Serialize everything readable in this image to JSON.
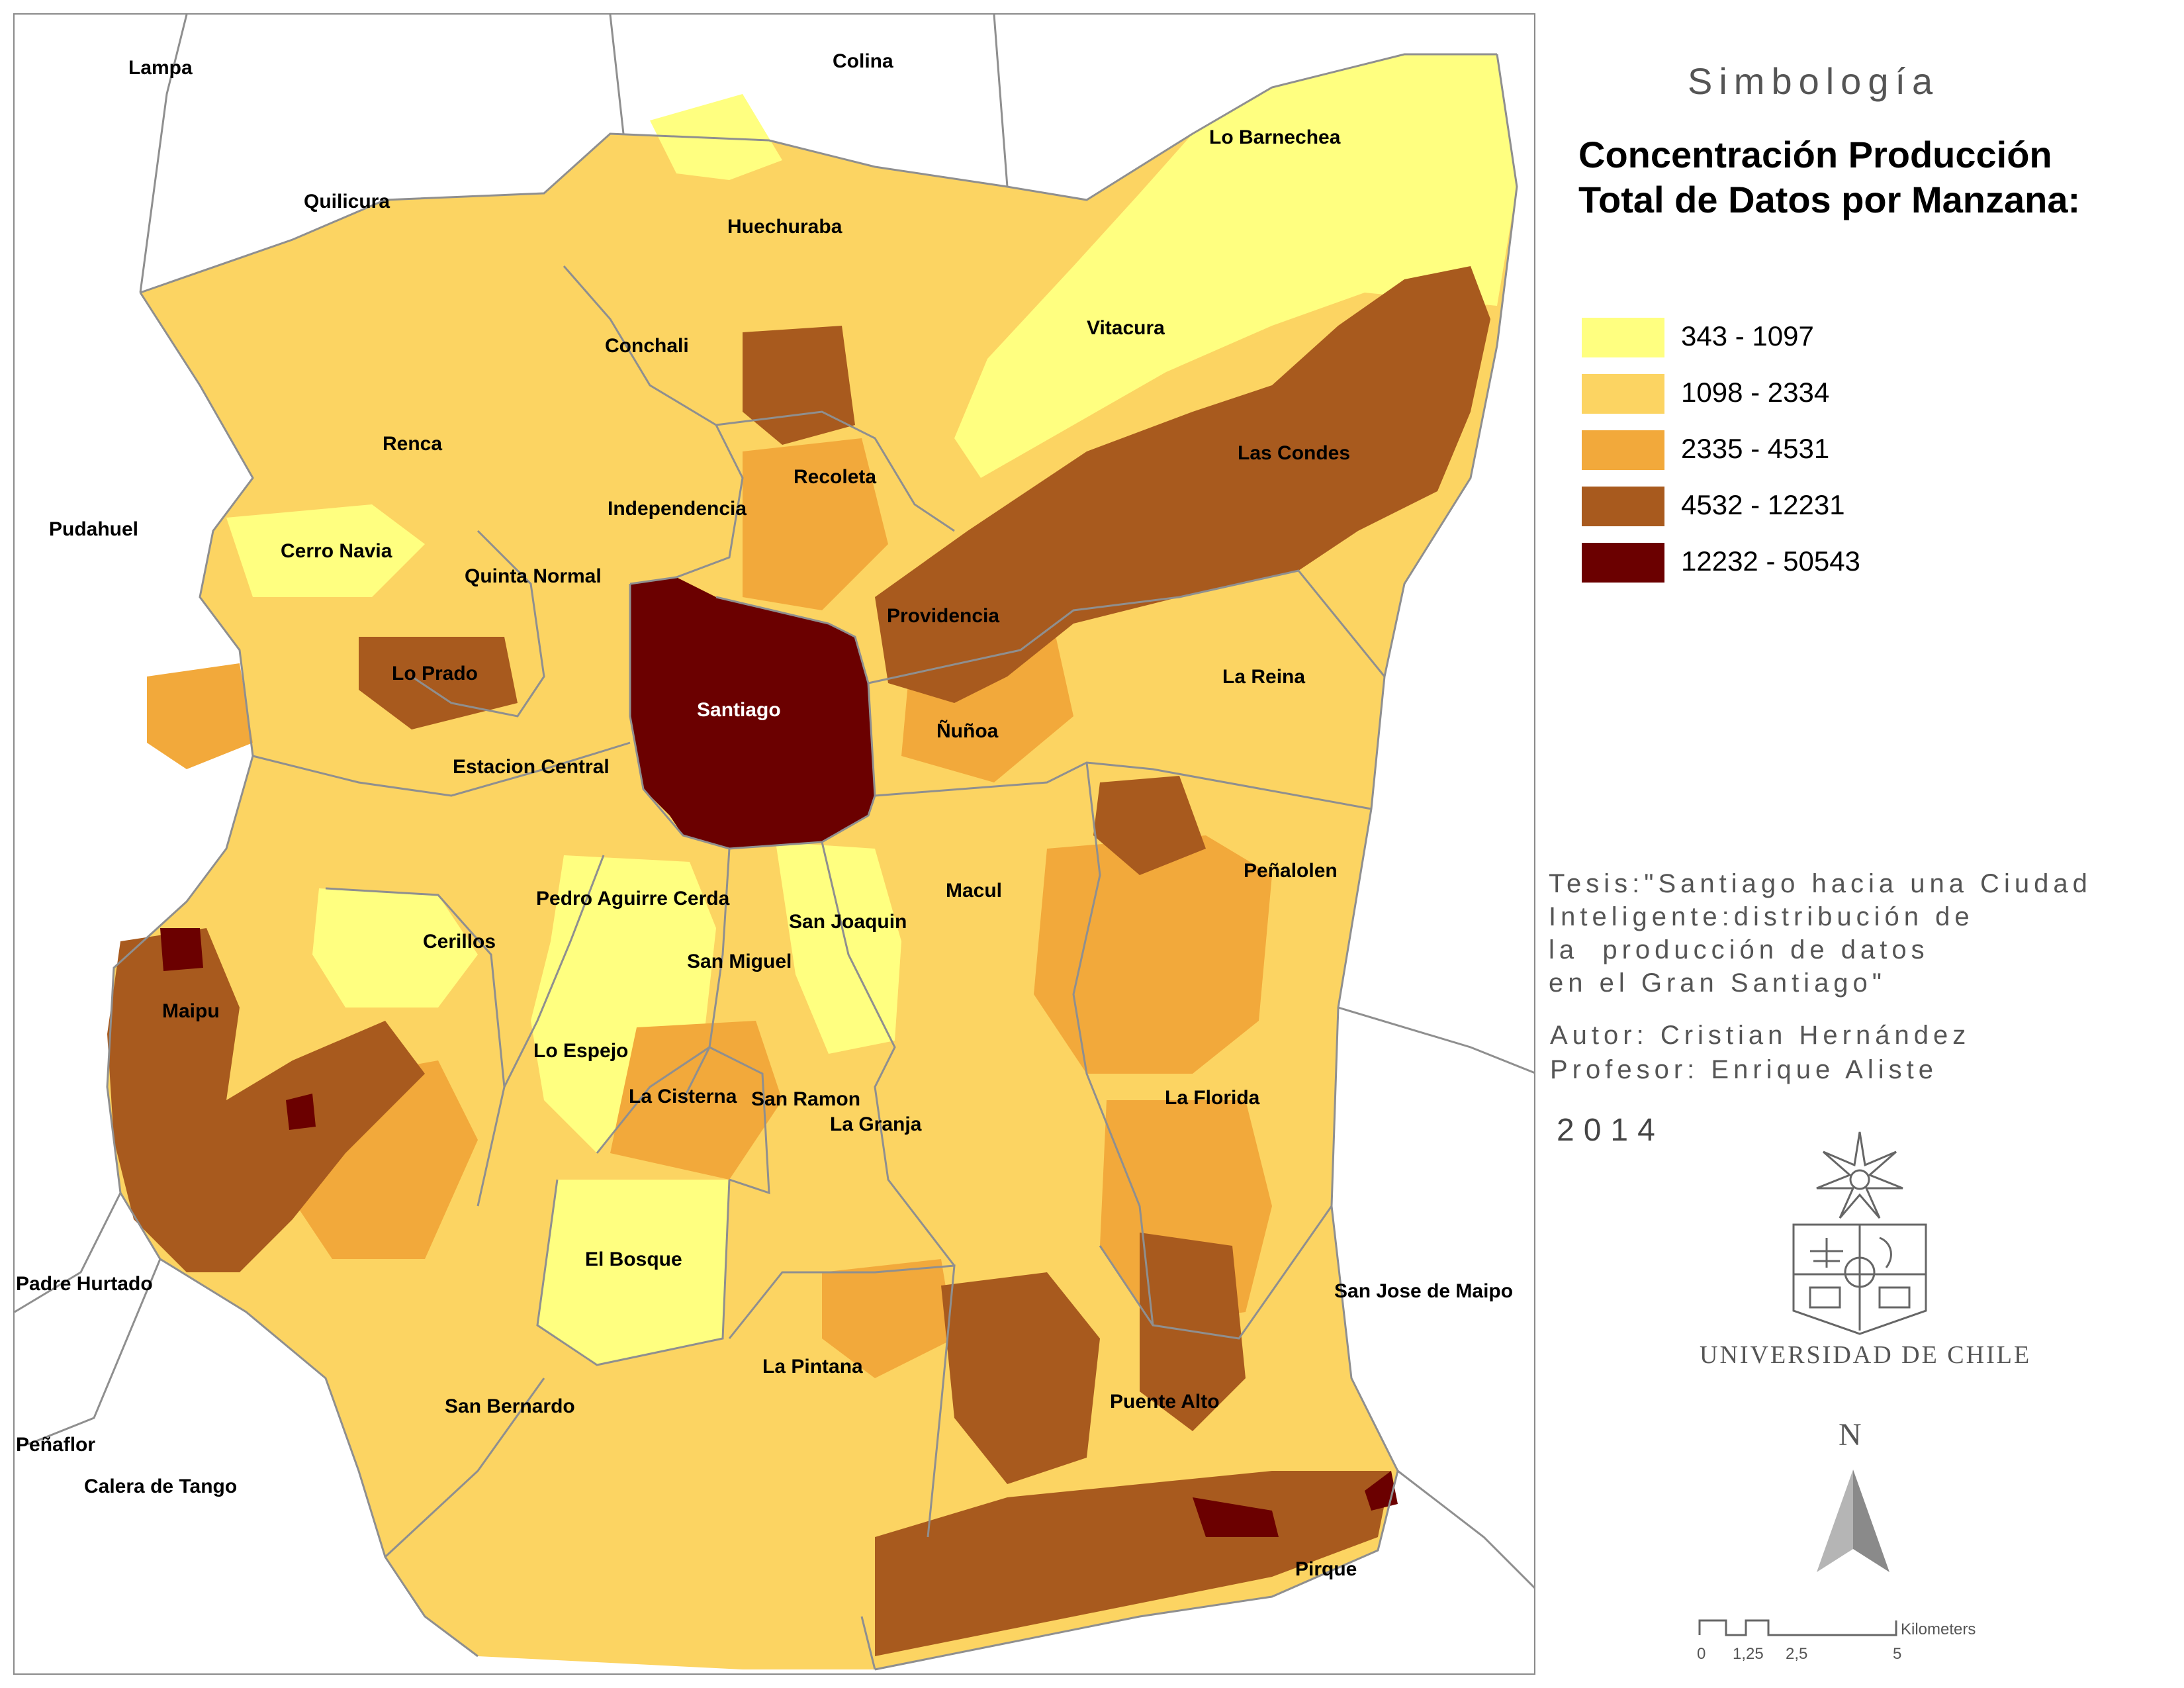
{
  "map": {
    "colors": {
      "class1": "#ffff80",
      "class2": "#fcd462",
      "class3": "#f2a93b",
      "class4": "#a85a1e",
      "class5": "#6b0000",
      "boundary": "#8f8f8f",
      "background": "#ffffff"
    },
    "labels": [
      {
        "name": "Lampa"
      },
      {
        "name": "Colina"
      },
      {
        "name": "Lo Barnechea"
      },
      {
        "name": "Quilicura"
      },
      {
        "name": "Huechuraba"
      },
      {
        "name": "Conchali"
      },
      {
        "name": "Vitacura"
      },
      {
        "name": "Renca"
      },
      {
        "name": "Las Condes"
      },
      {
        "name": "Recoleta"
      },
      {
        "name": "Pudahuel"
      },
      {
        "name": "Independencia"
      },
      {
        "name": "Cerro Navia"
      },
      {
        "name": "Quinta Normal"
      },
      {
        "name": "Providencia"
      },
      {
        "name": "Lo Prado"
      },
      {
        "name": "La Reina"
      },
      {
        "name": "Santiago"
      },
      {
        "name": "Ñuñoa"
      },
      {
        "name": "Estacion Central"
      },
      {
        "name": "Peñalolen"
      },
      {
        "name": "Pedro Aguirre Cerda"
      },
      {
        "name": "Macul"
      },
      {
        "name": "San Joaquin"
      },
      {
        "name": "Cerillos"
      },
      {
        "name": "San Miguel"
      },
      {
        "name": "Maipu"
      },
      {
        "name": "Lo Espejo"
      },
      {
        "name": "La Florida"
      },
      {
        "name": "La Cisterna"
      },
      {
        "name": "San Ramon"
      },
      {
        "name": "La Granja"
      },
      {
        "name": "El Bosque"
      },
      {
        "name": "Padre Hurtado"
      },
      {
        "name": "San Jose de Maipo"
      },
      {
        "name": "La Pintana"
      },
      {
        "name": "Puente Alto"
      },
      {
        "name": "San Bernardo"
      },
      {
        "name": "Peñaflor"
      },
      {
        "name": "Calera de Tango"
      },
      {
        "name": "Pirque"
      }
    ]
  },
  "legend": {
    "heading": "Simbología",
    "title": "Concentración Producción Total de Datos por Manzana:",
    "items": [
      {
        "label": "343 - 1097",
        "color": "#ffff80"
      },
      {
        "label": "1098 - 2334",
        "color": "#fcd462"
      },
      {
        "label": "2335 - 4531",
        "color": "#f2a93b"
      },
      {
        "label": "4532 - 12231",
        "color": "#a85a1e"
      },
      {
        "label": "12232 - 50543",
        "color": "#6b0000"
      }
    ]
  },
  "info": {
    "thesis": "Tesis:\"Santiago hacia una Ciudad\nInteligente:distribución de\nla  producción de datos\nen el Gran Santiago\"",
    "author": "Autor: Cristian Hernández\nProfesor: Enrique Aliste",
    "year": "2014",
    "university": "UNIVERSIDAD DE CHILE"
  },
  "north_arrow": {
    "letter": "N",
    "icon": "north-arrow-icon"
  },
  "scale_bar": {
    "ticks": [
      "0",
      "1,25",
      "2,5",
      "5"
    ],
    "unit": "Kilometers"
  }
}
